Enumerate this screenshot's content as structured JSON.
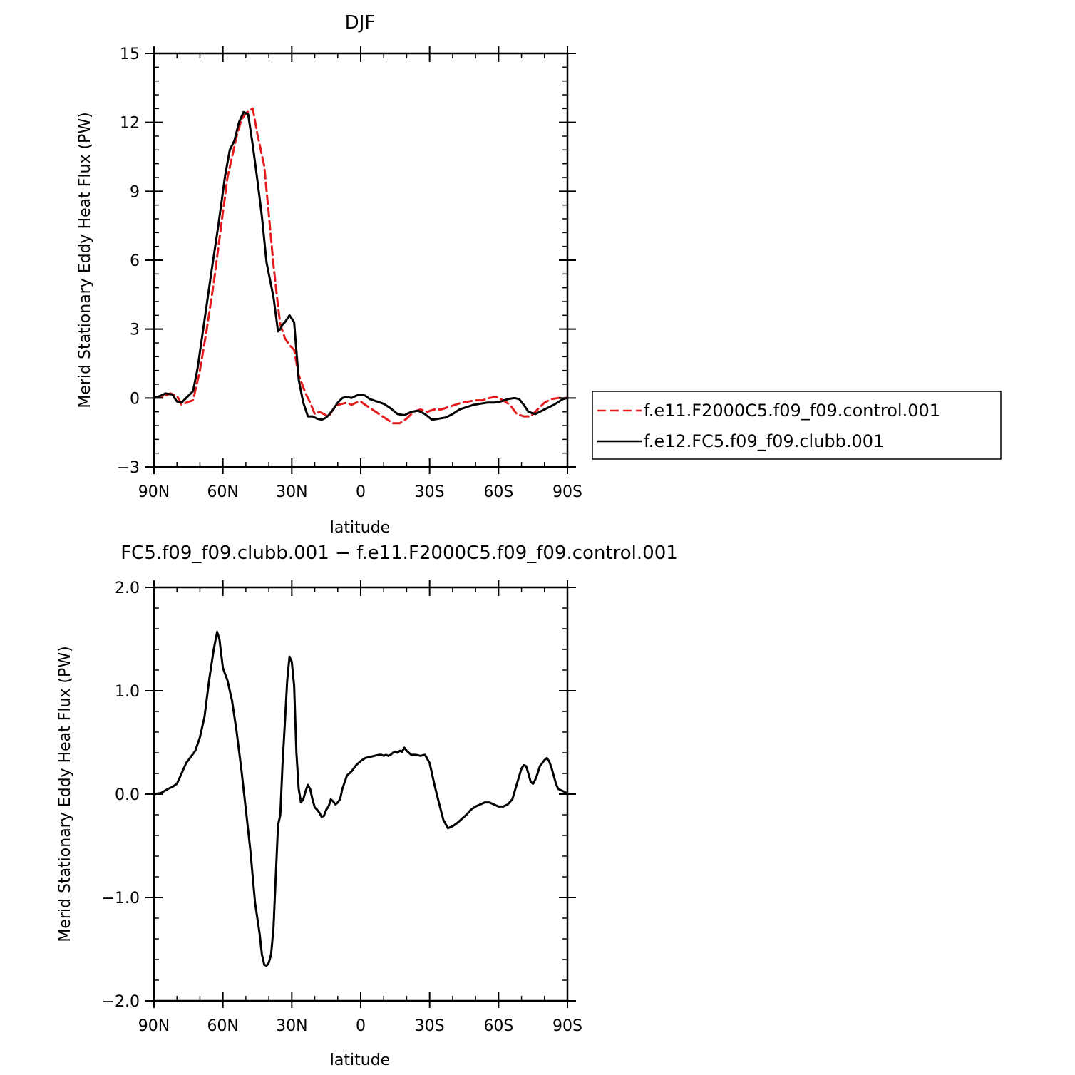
{
  "chart_data": [
    {
      "type": "line",
      "title": "DJF",
      "xlabel": "latitude",
      "ylabel": "Merid Stationary Eddy Heat Flux (PW)",
      "xlim": [
        90,
        -90
      ],
      "ylim": [
        -3,
        15
      ],
      "x_ticks": [
        90,
        60,
        30,
        0,
        -30,
        -60,
        -90
      ],
      "x_tick_labels": [
        "90N",
        "60N",
        "30N",
        "0",
        "30S",
        "60S",
        "90S"
      ],
      "y_ticks": [
        -3,
        0,
        3,
        6,
        9,
        12,
        15
      ],
      "y_tick_labels": [
        "−3",
        "0",
        "3",
        "6",
        "9",
        "12",
        "15"
      ],
      "legend_position": "right",
      "series": [
        {
          "name": "f.e11.F2000C5.f09_f09.control.001",
          "color": "#e41a1c",
          "dash": "dashed",
          "x": [
            90,
            86,
            83,
            80,
            78,
            76,
            73,
            70,
            67,
            64,
            61,
            58,
            56,
            54,
            52,
            50,
            47,
            45,
            42,
            40,
            38,
            36,
            35,
            33,
            31,
            29,
            27,
            24,
            22,
            20,
            18,
            16,
            14,
            12,
            10,
            8,
            6,
            4,
            2,
            0,
            -2,
            -5,
            -8,
            -11,
            -14,
            -17,
            -20,
            -23,
            -26,
            -29,
            -32,
            -35,
            -38,
            -41,
            -44,
            -47,
            -50,
            -53,
            -56,
            -59,
            -62,
            -65,
            -68,
            -71,
            -74,
            -77,
            -80,
            -83,
            -86,
            -89,
            -90
          ],
          "y": [
            0,
            0.05,
            0.2,
            0.1,
            -0.3,
            -0.2,
            -0.1,
            1.2,
            3.0,
            5.0,
            7.3,
            9.6,
            10.5,
            11.4,
            12.1,
            12.4,
            12.6,
            11.5,
            10.1,
            8.0,
            5.8,
            4.0,
            3.2,
            2.6,
            2.3,
            2.1,
            1.0,
            0.2,
            -0.2,
            -0.7,
            -0.6,
            -0.7,
            -0.8,
            -0.5,
            -0.3,
            -0.25,
            -0.2,
            -0.3,
            -0.2,
            -0.15,
            -0.3,
            -0.5,
            -0.7,
            -0.9,
            -1.1,
            -1.1,
            -0.9,
            -0.6,
            -0.5,
            -0.6,
            -0.5,
            -0.5,
            -0.4,
            -0.3,
            -0.2,
            -0.15,
            -0.1,
            -0.1,
            0.0,
            0.05,
            -0.1,
            -0.3,
            -0.7,
            -0.8,
            -0.8,
            -0.5,
            -0.2,
            -0.05,
            0,
            0,
            0
          ]
        },
        {
          "name": "f.e12.FC5.f09_f09.clubb.001",
          "color": "#000000",
          "dash": "solid",
          "x": [
            90,
            87,
            85,
            82,
            80,
            78,
            76,
            73,
            71,
            68,
            65,
            62,
            59,
            57,
            55,
            53,
            51,
            49,
            47,
            45,
            43,
            41,
            38,
            36,
            35,
            34,
            33,
            31,
            29,
            27,
            25,
            23,
            21,
            20,
            19,
            17,
            15,
            14,
            12,
            10,
            8,
            6,
            4,
            2,
            0,
            -2,
            -4,
            -7,
            -10,
            -13,
            -16,
            -19,
            -22,
            -25,
            -28,
            -31,
            -34,
            -37,
            -40,
            -43,
            -46,
            -49,
            -52,
            -55,
            -58,
            -61,
            -64,
            -67,
            -69,
            -71,
            -73,
            -76,
            -80,
            -84,
            -88,
            -90
          ],
          "y": [
            0,
            0.1,
            0.2,
            0.15,
            -0.15,
            -0.2,
            0.0,
            0.3,
            1.3,
            3.4,
            5.5,
            7.5,
            9.7,
            10.8,
            11.2,
            12.0,
            12.45,
            12.35,
            11.0,
            9.5,
            7.9,
            5.9,
            4.4,
            2.9,
            3.0,
            3.2,
            3.3,
            3.6,
            3.3,
            0.8,
            -0.2,
            -0.8,
            -0.8,
            -0.85,
            -0.9,
            -0.95,
            -0.85,
            -0.75,
            -0.5,
            -0.2,
            0.0,
            0.05,
            0.0,
            0.1,
            0.15,
            0.1,
            -0.05,
            -0.15,
            -0.25,
            -0.45,
            -0.7,
            -0.75,
            -0.6,
            -0.55,
            -0.7,
            -0.95,
            -0.9,
            -0.85,
            -0.7,
            -0.5,
            -0.4,
            -0.3,
            -0.25,
            -0.2,
            -0.2,
            -0.15,
            -0.05,
            0.0,
            -0.05,
            -0.3,
            -0.6,
            -0.7,
            -0.5,
            -0.3,
            -0.05,
            0
          ]
        }
      ]
    },
    {
      "type": "line",
      "title": "FC5.f09_f09.clubb.001 − f.e11.F2000C5.f09_f09.control.001",
      "xlabel": "latitude",
      "ylabel": "Merid Stationary Eddy Heat Flux (PW)",
      "xlim": [
        90,
        -90
      ],
      "ylim": [
        -2.0,
        2.0
      ],
      "x_ticks": [
        90,
        60,
        30,
        0,
        -30,
        -60,
        -90
      ],
      "x_tick_labels": [
        "90N",
        "60N",
        "30N",
        "0",
        "30S",
        "60S",
        "90S"
      ],
      "y_ticks": [
        -2.0,
        -1.0,
        0.0,
        1.0,
        2.0
      ],
      "y_tick_labels": [
        "−2.0",
        "−1.0",
        "0.0",
        "1.0",
        "2.0"
      ],
      "series": [
        {
          "name": "",
          "color": "#000000",
          "dash": "solid",
          "x": [
            90,
            87,
            84,
            82,
            80,
            78,
            76,
            74,
            72,
            70,
            68,
            66,
            64,
            62.5,
            61.5,
            60,
            58,
            56,
            54,
            52,
            50,
            48,
            46,
            44,
            43,
            42,
            41,
            40,
            39,
            38,
            37,
            36,
            35,
            34,
            33,
            32,
            31,
            30,
            29,
            28,
            27,
            26,
            25,
            24,
            23,
            22,
            21,
            20,
            19,
            18,
            17,
            16,
            15,
            14,
            13,
            12,
            11,
            10,
            9,
            8,
            6,
            4,
            2,
            0,
            -2,
            -4,
            -6,
            -8,
            -9,
            -10,
            -11,
            -12,
            -13,
            -14,
            -15,
            -16,
            -17,
            -18,
            -19,
            -20,
            -22,
            -24,
            -26,
            -28,
            -30,
            -32,
            -34,
            -36,
            -38,
            -40,
            -42,
            -44,
            -46,
            -48,
            -50,
            -52,
            -54,
            -56,
            -58,
            -60,
            -62,
            -64,
            -66,
            -68,
            -70,
            -71,
            -72,
            -73,
            -74,
            -75,
            -76,
            -77,
            -78,
            -79,
            -80,
            -81,
            -82,
            -83,
            -84,
            -85,
            -86,
            -87,
            -88,
            -89,
            -90
          ],
          "y": [
            0.0,
            0.01,
            0.05,
            0.07,
            0.1,
            0.2,
            0.3,
            0.36,
            0.42,
            0.55,
            0.75,
            1.1,
            1.4,
            1.57,
            1.5,
            1.22,
            1.1,
            0.9,
            0.6,
            0.25,
            -0.15,
            -0.55,
            -1.05,
            -1.35,
            -1.55,
            -1.65,
            -1.66,
            -1.63,
            -1.55,
            -1.3,
            -0.8,
            -0.3,
            -0.2,
            0.3,
            0.7,
            1.1,
            1.33,
            1.28,
            1.05,
            0.4,
            0.05,
            -0.08,
            -0.05,
            0.03,
            0.09,
            0.05,
            -0.05,
            -0.13,
            -0.15,
            -0.18,
            -0.22,
            -0.21,
            -0.15,
            -0.12,
            -0.05,
            -0.07,
            -0.1,
            -0.08,
            -0.05,
            0.05,
            0.18,
            0.22,
            0.28,
            0.32,
            0.35,
            0.36,
            0.37,
            0.38,
            0.38,
            0.37,
            0.38,
            0.37,
            0.38,
            0.4,
            0.41,
            0.4,
            0.42,
            0.41,
            0.45,
            0.42,
            0.38,
            0.38,
            0.37,
            0.38,
            0.3,
            0.1,
            -0.08,
            -0.25,
            -0.33,
            -0.31,
            -0.28,
            -0.24,
            -0.2,
            -0.15,
            -0.12,
            -0.1,
            -0.08,
            -0.08,
            -0.1,
            -0.12,
            -0.12,
            -0.1,
            -0.05,
            0.1,
            0.25,
            0.28,
            0.27,
            0.2,
            0.12,
            0.1,
            0.14,
            0.2,
            0.27,
            0.3,
            0.33,
            0.35,
            0.32,
            0.26,
            0.18,
            0.1,
            0.05,
            0.04,
            0.03,
            0.02,
            0.0
          ]
        }
      ]
    }
  ]
}
